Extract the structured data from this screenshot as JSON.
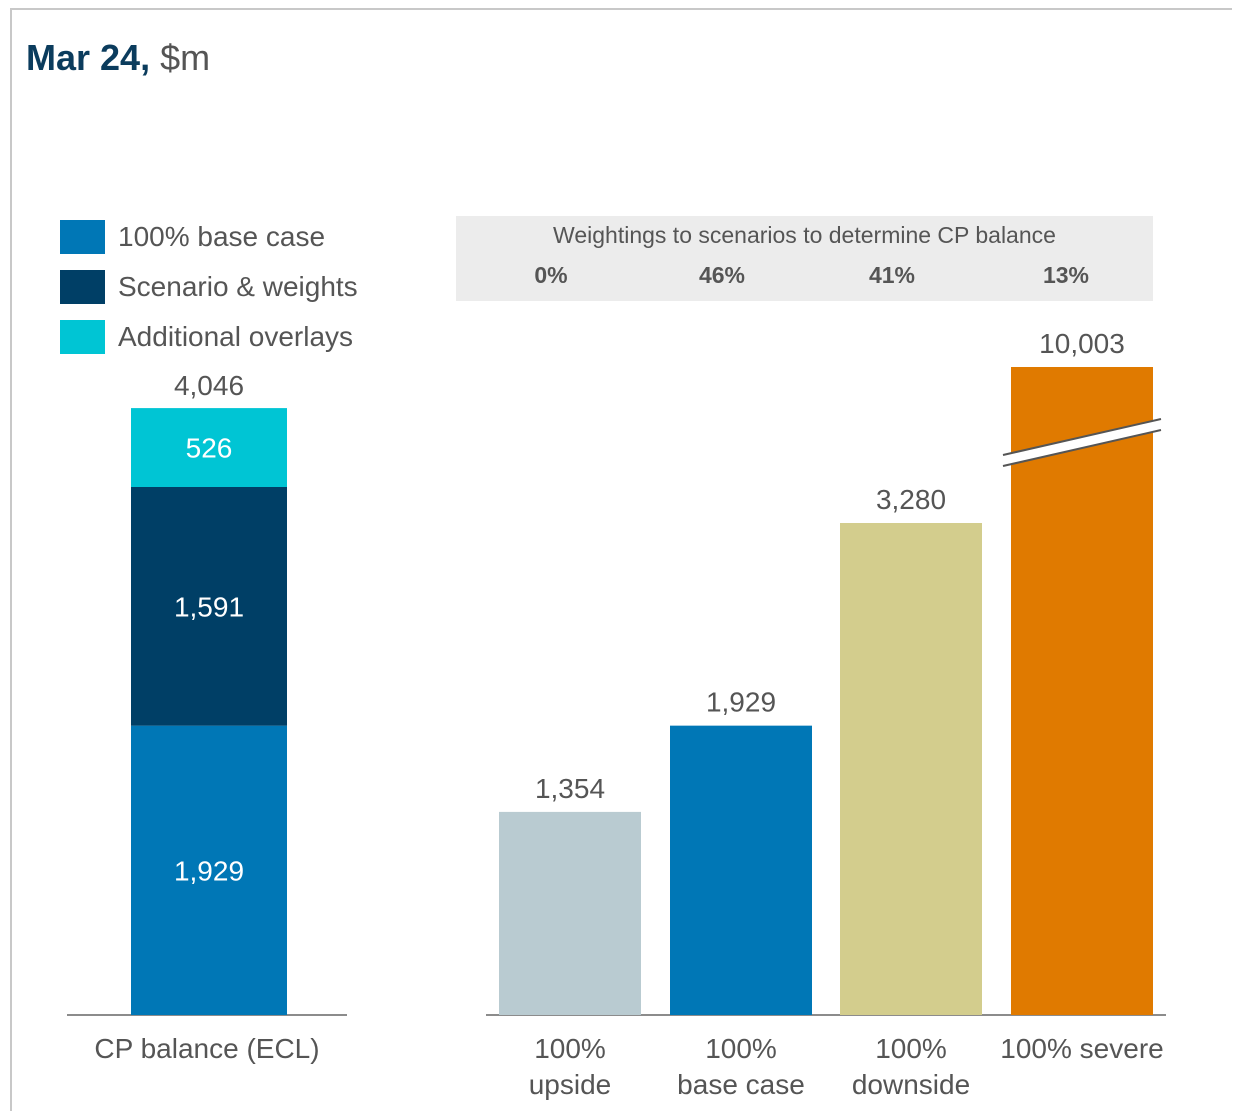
{
  "title": {
    "main": "Mar 24,",
    "unit": "$m"
  },
  "legend": [
    {
      "label": "100% base case",
      "color": "#0077b6"
    },
    {
      "label": "Scenario & weights",
      "color": "#003f66"
    },
    {
      "label": "Additional overlays",
      "color": "#00c5d4"
    }
  ],
  "weightings": {
    "title": "Weightings to scenarios to determine CP balance",
    "values": [
      "0%",
      "46%",
      "41%",
      "13%"
    ]
  },
  "chart_data": [
    {
      "type": "bar",
      "stacked": true,
      "categories": [
        "CP balance (ECL)"
      ],
      "series": [
        {
          "name": "100% base case",
          "values": [
            1929
          ],
          "color": "#0077b6"
        },
        {
          "name": "Scenario & weights",
          "values": [
            1591
          ],
          "color": "#003f66"
        },
        {
          "name": "Additional overlays",
          "values": [
            526
          ],
          "color": "#00c5d4"
        }
      ],
      "total_label": "4,046",
      "segment_labels": [
        "1,929",
        "1,591",
        "526"
      ],
      "ylim": [
        0,
        4500
      ]
    },
    {
      "type": "bar",
      "categories": [
        [
          "100%",
          "upside"
        ],
        [
          "100%",
          "base case"
        ],
        [
          "100%",
          "downside"
        ],
        [
          "100% severe"
        ]
      ],
      "values": [
        1354,
        1929,
        3280,
        10003
      ],
      "value_labels": [
        "1,354",
        "1,929",
        "3,280",
        "10,003"
      ],
      "colors": [
        "#b9cbd1",
        "#0077b6",
        "#d3cd8d",
        "#e07a00"
      ],
      "axis_break_on": "100% severe",
      "ylim": [
        0,
        4500
      ]
    }
  ]
}
